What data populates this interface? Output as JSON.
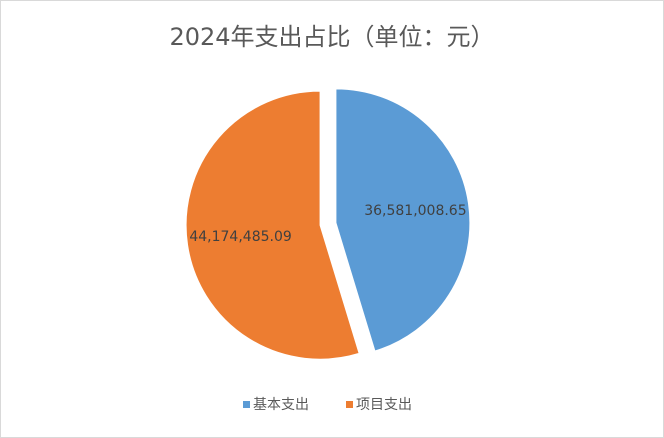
{
  "chart_data": {
    "type": "pie",
    "title": "2024年支出占比（单位：元）",
    "categories": [
      "基本支出",
      "项目支出"
    ],
    "values": [
      36581008.65,
      44174485.09
    ],
    "value_labels": [
      "36,581,008.65",
      "44,174,485.09"
    ],
    "colors": [
      "#5b9bd5",
      "#ed7d31"
    ],
    "legend": "bottom"
  }
}
